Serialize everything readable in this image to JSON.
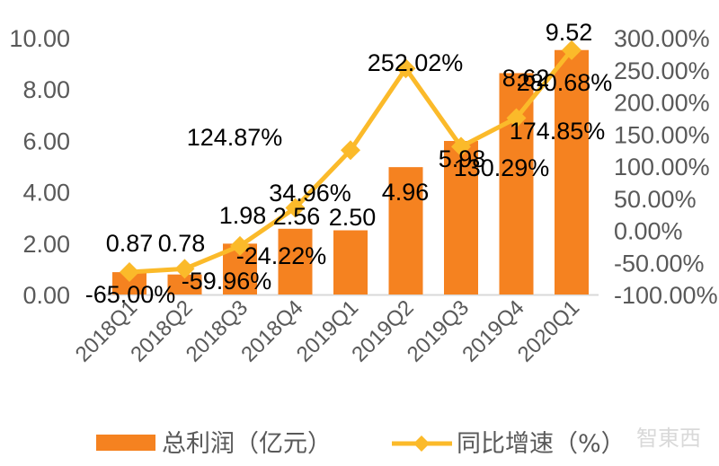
{
  "chart_data": {
    "type": "bar+line",
    "title": "",
    "categories": [
      "2018Q1",
      "2018Q2",
      "2018Q3",
      "2018Q4",
      "2019Q1",
      "2019Q2",
      "2019Q3",
      "2019Q4",
      "2020Q1"
    ],
    "series": [
      {
        "name": "总利润（亿元）",
        "type": "bar",
        "axis": "left",
        "color": "#F58220",
        "values": [
          0.87,
          0.78,
          1.98,
          2.56,
          2.5,
          4.96,
          5.98,
          8.62,
          9.52
        ],
        "labels": [
          "0.87",
          "0.78",
          "1.98",
          "2.56",
          "2.50",
          "4.96",
          "5.98",
          "8.62",
          "9.52"
        ]
      },
      {
        "name": "同比增速（%）",
        "type": "line",
        "axis": "right",
        "color": "#FBBA2A",
        "marker": "diamond",
        "values": [
          -65.0,
          -59.96,
          -24.22,
          34.96,
          124.87,
          252.02,
          130.29,
          174.85,
          280.68
        ],
        "labels": [
          "-65.00%",
          "-59.96%",
          "-24.22%",
          "34.96%",
          "124.87%",
          "252.02%",
          "130.29%",
          "174.85%",
          "280.68%"
        ]
      }
    ],
    "left_axis": {
      "ylim": [
        0,
        10
      ],
      "ticks": [
        "0.00",
        "2.00",
        "4.00",
        "6.00",
        "8.00",
        "10.00"
      ]
    },
    "right_axis": {
      "ylim": [
        -100,
        300
      ],
      "ticks": [
        "-100.00%",
        "-50.00%",
        "0.00%",
        "50.00%",
        "100.00%",
        "150.00%",
        "200.00%",
        "250.00%",
        "300.00%"
      ]
    },
    "xlabel": "",
    "ylabel": "",
    "grid": false,
    "legend_position": "bottom"
  },
  "legend": {
    "bar_label": "总利润（亿元）",
    "line_label": "同比增速（%）"
  },
  "watermark": "智東西"
}
